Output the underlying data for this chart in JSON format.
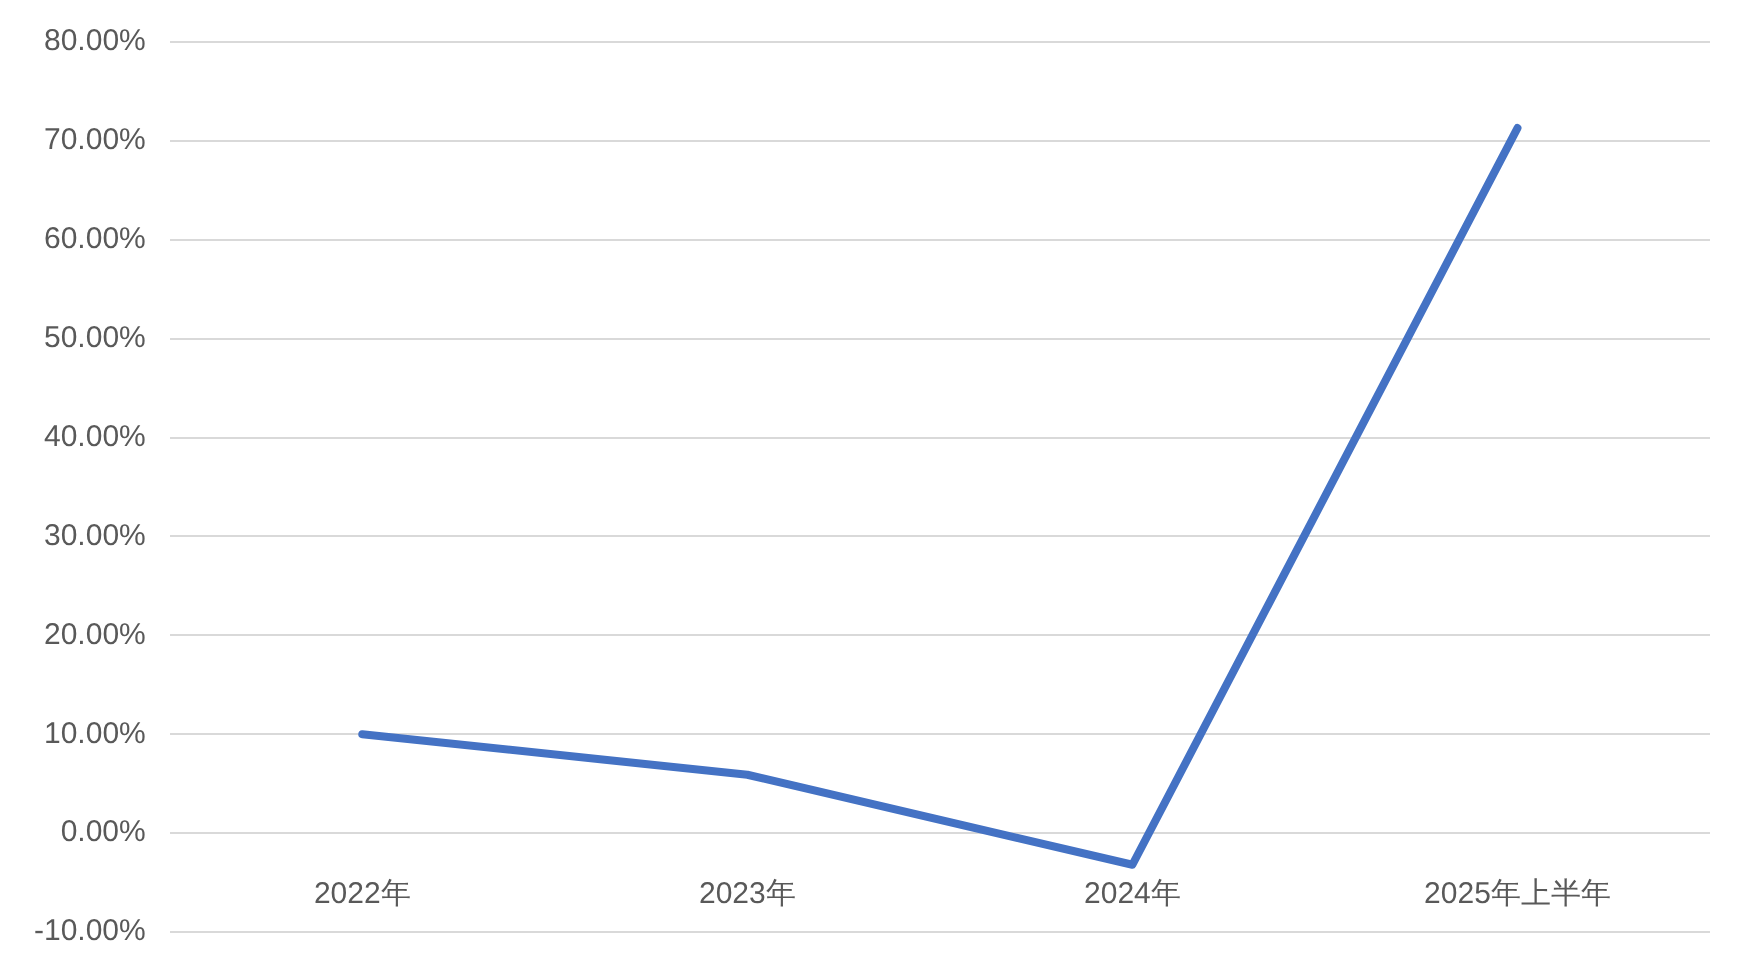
{
  "chart_data": {
    "type": "line",
    "categories": [
      "2022年",
      "2023年",
      "2024年",
      "2025年上半年"
    ],
    "series": [
      {
        "color": "#4472c4",
        "values": [
          10,
          5.9,
          -3.2,
          71.3
        ]
      }
    ],
    "ylim": [
      -10,
      80
    ],
    "yticks": [
      {
        "value": -10,
        "label": "-10.00%"
      },
      {
        "value": 0,
        "label": "0.00%"
      },
      {
        "value": 10,
        "label": "10.00%"
      },
      {
        "value": 20,
        "label": "20.00%"
      },
      {
        "value": 30,
        "label": "30.00%"
      },
      {
        "value": 40,
        "label": "40.00%"
      },
      {
        "value": 50,
        "label": "50.00%"
      },
      {
        "value": 60,
        "label": "60.00%"
      },
      {
        "value": 70,
        "label": "70.00%"
      },
      {
        "value": 80,
        "label": "80.00%"
      }
    ],
    "grid": "y",
    "legend": false,
    "marker": "none",
    "line_style": "solid"
  }
}
